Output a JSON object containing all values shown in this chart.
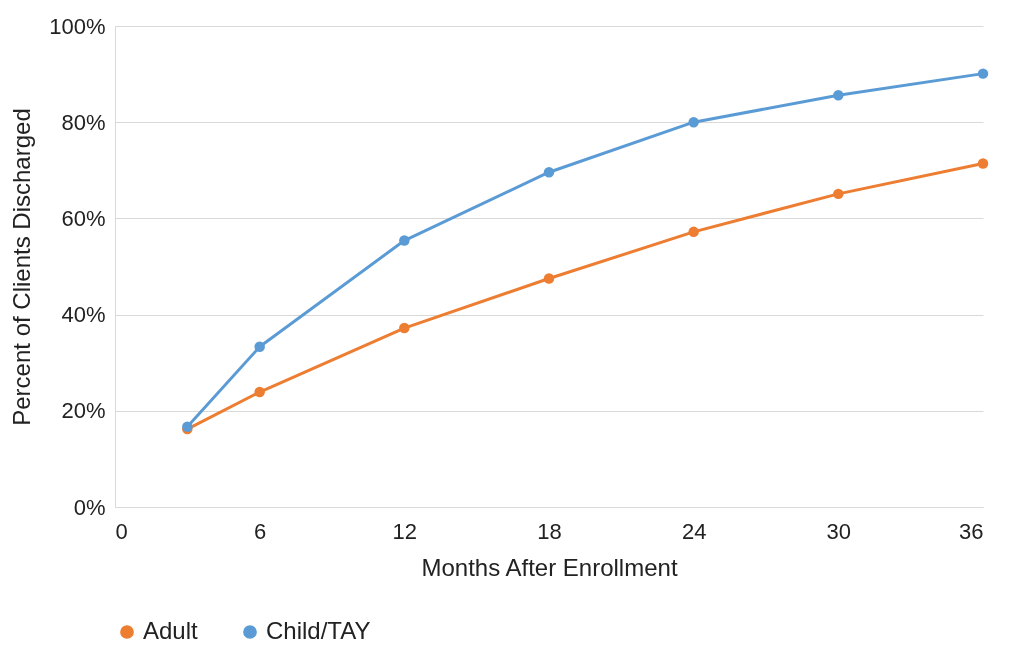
{
  "chart_data": {
    "type": "line",
    "xlabel": "Months After Enrollment",
    "ylabel": "Percent of Clients Discharged",
    "xlim": [
      0,
      36
    ],
    "xticks": [
      0,
      6,
      12,
      18,
      24,
      30,
      36
    ],
    "ylim": [
      0,
      100
    ],
    "yticks": [
      {
        "value": 0,
        "label": "0%"
      },
      {
        "value": 20,
        "label": "20%"
      },
      {
        "value": 40,
        "label": "40%"
      },
      {
        "value": 60,
        "label": "60%"
      },
      {
        "value": 80,
        "label": "80%"
      },
      {
        "value": 100,
        "label": "100%"
      }
    ],
    "grid": "y",
    "legend": "bottom",
    "marker": "circle",
    "line_style": "solid",
    "x": [
      3,
      6,
      12,
      18,
      24,
      30,
      36
    ],
    "series": [
      {
        "name": "Adult",
        "color": "#ed7d31",
        "values": [
          16.2,
          23.9,
          37.2,
          47.5,
          57.2,
          65.1,
          71.4
        ]
      },
      {
        "name": "Child/TAY",
        "color": "#5b9bd5",
        "values": [
          16.7,
          33.3,
          55.4,
          69.6,
          80.0,
          85.6,
          90.1
        ]
      }
    ]
  }
}
